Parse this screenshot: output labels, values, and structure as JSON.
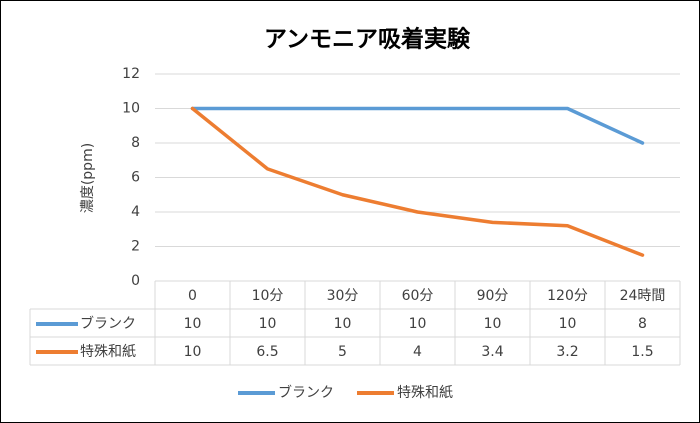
{
  "chart_data": {
    "type": "line",
    "title": "アンモニア吸着実験",
    "y_label": "濃度(ppm)",
    "categories": [
      "0",
      "10分",
      "30分",
      "60分",
      "90分",
      "120分",
      "24時間"
    ],
    "series": [
      {
        "name": "ブランク",
        "color": "#5b9bd5",
        "values": [
          10,
          10,
          10,
          10,
          10,
          10,
          8
        ]
      },
      {
        "name": "特殊和紙",
        "color": "#ed7d31",
        "values": [
          10,
          6.5,
          5,
          4,
          3.4,
          3.2,
          1.5
        ]
      }
    ],
    "ylim": [
      0,
      12
    ],
    "yticks": [
      0,
      2,
      4,
      6,
      8,
      10,
      12
    ],
    "grid": true,
    "legend": "bottom"
  }
}
